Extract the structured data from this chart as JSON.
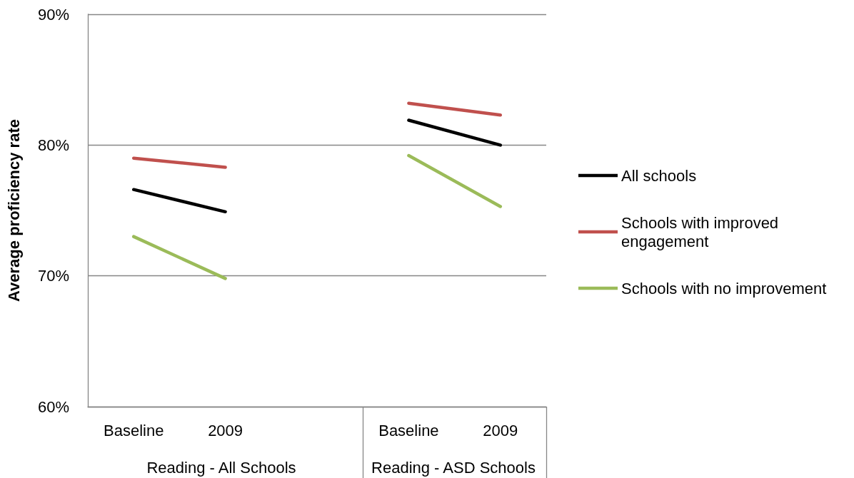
{
  "chart_data": {
    "type": "line",
    "ylabel": "Average proficiency rate",
    "categories": [
      "Baseline",
      "2009",
      null,
      "Baseline",
      "2009"
    ],
    "annotations": [
      "Reading - All Schools",
      "Reading - ASD Schools"
    ],
    "series": [
      {
        "name": "All schools",
        "color": "#000000",
        "values": [
          76.6,
          74.9,
          null,
          81.9,
          80.0
        ]
      },
      {
        "name": "Schools with improved engagement",
        "color": "#c0504d",
        "values": [
          79.0,
          78.3,
          null,
          83.2,
          82.3
        ]
      },
      {
        "name": "Schools with no improvement",
        "color": "#9bbb59",
        "values": [
          73.0,
          69.8,
          null,
          79.2,
          75.3
        ]
      }
    ],
    "ylim": [
      60,
      90
    ],
    "yticks": [
      {
        "value": 60,
        "label": "60%"
      },
      {
        "value": 70,
        "label": "70%"
      },
      {
        "value": 80,
        "label": "80%"
      },
      {
        "value": 90,
        "label": "90%"
      }
    ],
    "grid": "y",
    "legend": "right",
    "marker": "none",
    "line_style": "solid"
  }
}
